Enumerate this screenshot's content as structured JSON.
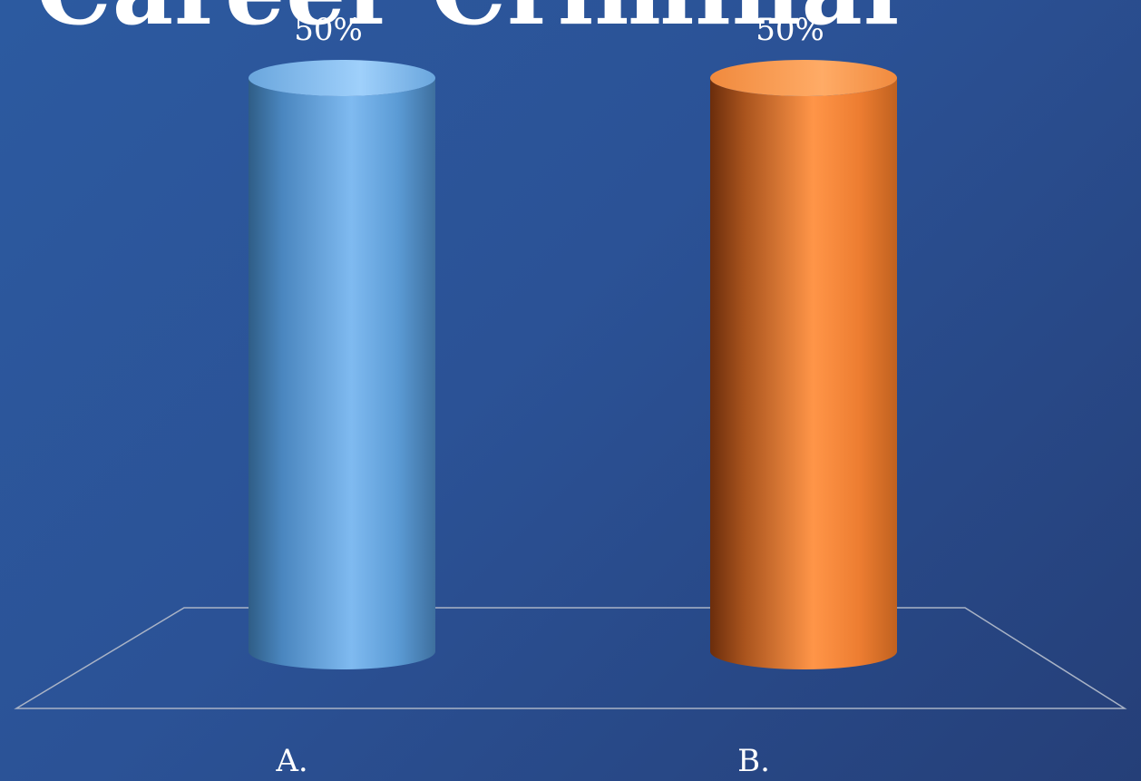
{
  "slide": {
    "title": "Career Criminal"
  },
  "chart_data": {
    "type": "bar",
    "style": "3d-cylinder",
    "categories": [
      "A.",
      "B."
    ],
    "values": [
      50,
      50
    ],
    "data_labels": [
      "50%",
      "50%"
    ],
    "colors": [
      "#5b9bd5",
      "#ed7d31"
    ],
    "ylim": [
      0,
      50
    ],
    "grid": false,
    "legend": "none",
    "title": "",
    "xlabel": "",
    "ylabel": ""
  }
}
